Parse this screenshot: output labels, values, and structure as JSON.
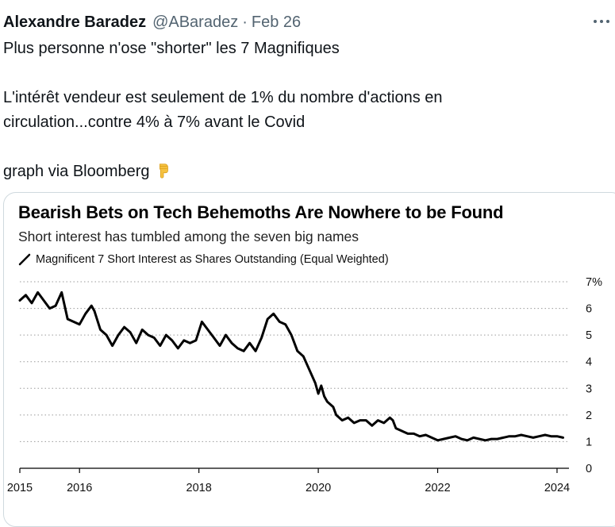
{
  "tweet": {
    "author_name": "Alexandre Baradez",
    "author_handle": "@ABaradez",
    "separator": "·",
    "date": "Feb 26",
    "more_icon": "more-horizontal-icon",
    "text_line_1": "Plus personne n'ose \"shorter\" les 7  Magnifiques",
    "text_line_2": "L'intérêt vendeur est seulement de 1% du nombre d'actions en",
    "text_line_3": "circulation...contre 4% à 7% avant le Covid",
    "text_line_4": "graph via Bloomberg",
    "emoji_icon": "backhand-index-pointing-down-icon"
  },
  "chart_data": {
    "type": "line",
    "title": "Bearish Bets on Tech Behemoths Are Nowhere to be Found",
    "subtitle": "Short interest has tumbled among the seven big names",
    "xlabel": "",
    "ylabel": "",
    "xlim": [
      2015,
      2024.2
    ],
    "ylim": [
      0,
      7
    ],
    "x_ticks": [
      2015,
      2016,
      2018,
      2020,
      2022,
      2024
    ],
    "y_ticks": [
      0,
      1,
      2,
      3,
      4,
      5,
      6,
      7
    ],
    "y_tick_labels": [
      "0",
      "1",
      "2",
      "3",
      "4",
      "5",
      "6",
      "7%"
    ],
    "y_axis_position": "right",
    "grid": "horizontal-dotted",
    "legend_position": "top-left",
    "series": [
      {
        "name": "Magnificent 7 Short Interest as Shares Outstanding (Equal Weighted)",
        "color": "#000000",
        "x": [
          2015.0,
          2015.1,
          2015.2,
          2015.3,
          2015.4,
          2015.5,
          2015.6,
          2015.7,
          2015.72,
          2015.8,
          2015.9,
          2016.0,
          2016.1,
          2016.2,
          2016.25,
          2016.35,
          2016.45,
          2016.55,
          2016.65,
          2016.75,
          2016.85,
          2016.95,
          2017.05,
          2017.15,
          2017.25,
          2017.35,
          2017.45,
          2017.55,
          2017.65,
          2017.75,
          2017.85,
          2017.95,
          2018.05,
          2018.15,
          2018.25,
          2018.35,
          2018.45,
          2018.55,
          2018.65,
          2018.75,
          2018.85,
          2018.95,
          2019.05,
          2019.15,
          2019.25,
          2019.35,
          2019.45,
          2019.55,
          2019.65,
          2019.75,
          2019.85,
          2019.95,
          2020.0,
          2020.05,
          2020.1,
          2020.15,
          2020.2,
          2020.25,
          2020.3,
          2020.4,
          2020.5,
          2020.6,
          2020.7,
          2020.8,
          2020.9,
          2021.0,
          2021.1,
          2021.2,
          2021.25,
          2021.3,
          2021.4,
          2021.5,
          2021.6,
          2021.7,
          2021.8,
          2021.9,
          2022.0,
          2022.1,
          2022.2,
          2022.3,
          2022.4,
          2022.5,
          2022.6,
          2022.7,
          2022.8,
          2022.9,
          2023.0,
          2023.1,
          2023.2,
          2023.3,
          2023.4,
          2023.5,
          2023.6,
          2023.7,
          2023.8,
          2023.9,
          2024.0,
          2024.1
        ],
        "values": [
          6.3,
          6.5,
          6.2,
          6.6,
          6.3,
          6.0,
          6.1,
          6.6,
          6.4,
          5.6,
          5.5,
          5.4,
          5.8,
          6.1,
          5.9,
          5.2,
          5.0,
          4.6,
          5.0,
          5.3,
          5.1,
          4.7,
          5.2,
          5.0,
          4.9,
          4.6,
          5.0,
          4.8,
          4.5,
          4.8,
          4.7,
          4.8,
          5.5,
          5.2,
          4.9,
          4.6,
          5.0,
          4.7,
          4.5,
          4.4,
          4.7,
          4.4,
          4.9,
          5.6,
          5.8,
          5.5,
          5.4,
          5.0,
          4.4,
          4.2,
          3.7,
          3.2,
          2.8,
          3.1,
          2.7,
          2.5,
          2.4,
          2.3,
          2.0,
          1.8,
          1.9,
          1.7,
          1.8,
          1.8,
          1.6,
          1.8,
          1.7,
          1.9,
          1.8,
          1.5,
          1.4,
          1.3,
          1.3,
          1.2,
          1.25,
          1.15,
          1.05,
          1.1,
          1.15,
          1.2,
          1.1,
          1.05,
          1.15,
          1.1,
          1.05,
          1.1,
          1.1,
          1.15,
          1.2,
          1.2,
          1.25,
          1.2,
          1.15,
          1.2,
          1.25,
          1.2,
          1.2,
          1.15
        ]
      }
    ]
  }
}
